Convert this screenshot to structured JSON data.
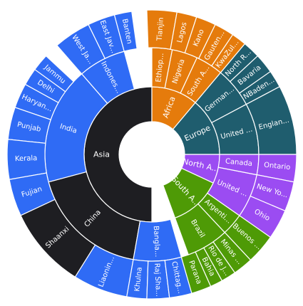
{
  "chart_data": {
    "type": "sunburst",
    "title": "",
    "colors": {
      "Asia": "#1e1e22",
      "Asia-child": "#2f6bf5",
      "Africa": "#e57b0c",
      "Europe": "#1f5d6e",
      "North America": "#9b4cf2",
      "South America": "#4e9a06"
    },
    "labels": {
      "Asia": "Asia",
      "India": "India",
      "China": "China",
      "Indonesia": "Indones...",
      "Bangladesh": "Bangla...",
      "Africa": "Africa",
      "Nigeria": "Nigeria",
      "Ethiopia": "Ethiop...",
      "South Africa": "South A...",
      "Europe": "Europe",
      "Germany": "German...",
      "United Kingdom": "United ...",
      "North America": "North A...",
      "United States": "United ...",
      "Canada": "Canada",
      "South America": "South A...",
      "Brazil": "Brazil",
      "Argentina": "Argenti...",
      "West Java": "West Ja...",
      "East Java": "East Jav...",
      "Banten": "Banten",
      "Jammu": "Jammu",
      "Delhi": "Delhi",
      "Haryana": "Haryan...",
      "Punjab": "Punjab",
      "Kerala": "Kerala",
      "Fujian": "Fujian",
      "Shaanxi": "Shaanxi",
      "Liaoning": "Liaonin...",
      "Khulna": "Khulna",
      "Rajshahi": "Raj Sha...",
      "Chittagong": "Chittag...",
      "Tianjin": "Tianjin",
      "Lagos": "Lagos",
      "Kano": "Kano",
      "Gauteng": "Gauten...",
      "KwaZulu": "KwaZul...",
      "North Rhine": "North R...",
      "Bavaria": "Bavaria",
      "NBaden": "NBaden...",
      "England": "Englan...",
      "Ontario": "Ontario",
      "New York": "New Yo...",
      "Ohio": "Ohio",
      "Buenos": "Buenos ...",
      "Minas": "Minas ...",
      "Rio": "Rio de J...",
      "Bahia": "Bahia",
      "Parana": "Parana"
    },
    "segments": [
      {
        "key": "Asia",
        "ring": 1,
        "start": 180,
        "end": 360,
        "color": "Asia"
      },
      {
        "key": "India",
        "ring": 2,
        "start": 255,
        "end": 319,
        "color": "Asia-child"
      },
      {
        "key": "China",
        "ring": 2,
        "start": 190,
        "end": 255,
        "color": "Asia"
      },
      {
        "key": "Indonesia",
        "ring": 2,
        "start": 319,
        "end": 345,
        "color": "Asia-child"
      },
      {
        "key": "Bangladesh",
        "ring": 2,
        "start": 164,
        "end": 190,
        "color": "Asia-child"
      },
      {
        "key": "Africa",
        "ring": 1,
        "start": 0,
        "end": 40,
        "color": "Africa"
      },
      {
        "key": "Nigeria",
        "ring": 2,
        "start": 11,
        "end": 25,
        "color": "Africa"
      },
      {
        "key": "Ethiopia",
        "ring": 2,
        "start": 0,
        "end": 11,
        "color": "Africa"
      },
      {
        "key": "South Africa",
        "ring": 2,
        "start": 25,
        "end": 40,
        "color": "Africa"
      },
      {
        "key": "Europe",
        "ring": 1,
        "start": 40,
        "end": 90,
        "color": "Europe"
      },
      {
        "key": "Germany",
        "ring": 2,
        "start": 40,
        "end": 62,
        "color": "Europe"
      },
      {
        "key": "United Kingdom",
        "ring": 2,
        "start": 62,
        "end": 90,
        "color": "Europe"
      },
      {
        "key": "North America",
        "ring": 1,
        "start": 90,
        "end": 115,
        "color": "North America"
      },
      {
        "key": "United States",
        "ring": 2,
        "start": 101,
        "end": 125,
        "color": "North America"
      },
      {
        "key": "Canada",
        "ring": 2,
        "start": 90,
        "end": 101,
        "color": "North America"
      },
      {
        "key": "South America",
        "ring": 1,
        "start": 115,
        "end": 160,
        "color": "South America"
      },
      {
        "key": "Brazil",
        "ring": 2,
        "start": 137,
        "end": 160,
        "color": "South America"
      },
      {
        "key": "Argentina",
        "ring": 2,
        "start": 125,
        "end": 137,
        "color": "South America"
      },
      {
        "key": "West Java",
        "ring": 3,
        "start": 319,
        "end": 334,
        "color": "Asia-child"
      },
      {
        "key": "East Java",
        "ring": 3,
        "start": 334,
        "end": 345,
        "color": "Asia-child"
      },
      {
        "key": "Banten",
        "ring": 3,
        "start": 345,
        "end": 352,
        "color": "Asia-child"
      },
      {
        "key": "Jammu",
        "ring": 3,
        "start": 306,
        "end": 313,
        "color": "Asia-child"
      },
      {
        "key": "Delhi",
        "ring": 3,
        "start": 299,
        "end": 306,
        "color": "Asia-child"
      },
      {
        "key": "Haryana",
        "ring": 3,
        "start": 289,
        "end": 299,
        "color": "Asia-child"
      },
      {
        "key": "Punjab",
        "ring": 3,
        "start": 276,
        "end": 289,
        "color": "Asia-child"
      },
      {
        "key": "Kerala",
        "ring": 3,
        "start": 260,
        "end": 276,
        "color": "Asia-child"
      },
      {
        "key": "Fujian",
        "ring": 3,
        "start": 245,
        "end": 260,
        "color": "Asia-child"
      },
      {
        "key": "Shaanxi",
        "ring": 3,
        "start": 212,
        "end": 245,
        "color": "Asia"
      },
      {
        "key": "Liaoning",
        "ring": 3,
        "start": 190,
        "end": 212,
        "color": "Asia-child"
      },
      {
        "key": "Khulna",
        "ring": 3,
        "start": 182,
        "end": 190,
        "color": "Asia-child"
      },
      {
        "key": "Rajshahi",
        "ring": 3,
        "start": 173,
        "end": 182,
        "color": "Asia-child"
      },
      {
        "key": "Chittagong",
        "ring": 3,
        "start": 164,
        "end": 173,
        "color": "Asia-child"
      },
      {
        "key": "Tianjin",
        "ring": 3,
        "start": 358,
        "end": 10,
        "color": "Africa"
      },
      {
        "key": "Lagos",
        "ring": 3,
        "start": 10,
        "end": 18,
        "color": "Africa"
      },
      {
        "key": "Kano",
        "ring": 3,
        "start": 18,
        "end": 26,
        "color": "Africa"
      },
      {
        "key": "Gauteng",
        "ring": 3,
        "start": 26,
        "end": 34,
        "color": "Africa"
      },
      {
        "key": "KwaZulu",
        "ring": 3,
        "start": 34,
        "end": 40,
        "color": "Africa"
      },
      {
        "key": "North Rhine",
        "ring": 3,
        "start": 40,
        "end": 47,
        "color": "Europe"
      },
      {
        "key": "Bavaria",
        "ring": 3,
        "start": 47,
        "end": 55,
        "color": "Europe"
      },
      {
        "key": "NBaden",
        "ring": 3,
        "start": 55,
        "end": 62,
        "color": "Europe"
      },
      {
        "key": "England",
        "ring": 3,
        "start": 62,
        "end": 90,
        "color": "Europe"
      },
      {
        "key": "Ontario",
        "ring": 3,
        "start": 90,
        "end": 101,
        "color": "North America"
      },
      {
        "key": "New York",
        "ring": 3,
        "start": 101,
        "end": 113,
        "color": "North America"
      },
      {
        "key": "Ohio",
        "ring": 3,
        "start": 113,
        "end": 125,
        "color": "North America"
      },
      {
        "key": "Buenos",
        "ring": 3,
        "start": 125,
        "end": 137,
        "color": "South America"
      },
      {
        "key": "Minas",
        "ring": 3,
        "start": 137,
        "end": 145,
        "color": "South America"
      },
      {
        "key": "Rio",
        "ring": 3,
        "start": 145,
        "end": 151,
        "color": "South America"
      },
      {
        "key": "Bahia",
        "ring": 3,
        "start": 151,
        "end": 156,
        "color": "South America"
      },
      {
        "key": "Parana",
        "ring": 3,
        "start": 156,
        "end": 164,
        "color": "South America"
      }
    ]
  }
}
